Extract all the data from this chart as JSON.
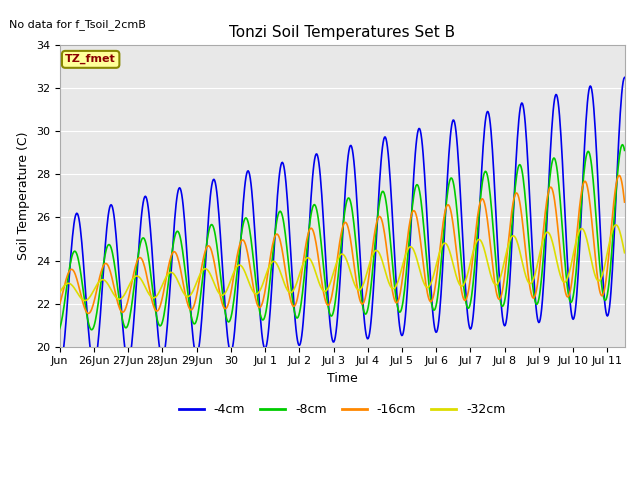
{
  "title": "Tonzi Soil Temperatures Set B",
  "xlabel": "Time",
  "ylabel": "Soil Temperature (C)",
  "no_data_text": "No data for f_Tsoil_2cmB",
  "annotation_text": "TZ_fmet",
  "ylim": [
    20,
    34
  ],
  "yticks": [
    20,
    22,
    24,
    26,
    28,
    30,
    32,
    34
  ],
  "xtick_labels": [
    "Jun",
    "26Jun",
    "27Jun",
    "28Jun",
    "29Jun",
    "30",
    "Jul 1",
    "Jul 2",
    "Jul 3",
    "Jul 4",
    "Jul 5",
    "Jul 6",
    "Jul 7",
    "Jul 8",
    "Jul 9",
    "Jul 10",
    "Jul 11"
  ],
  "colors": {
    "4cm": "#0000ee",
    "8cm": "#00cc00",
    "16cm": "#ff8800",
    "32cm": "#dddd00"
  },
  "legend_labels": [
    "-4cm",
    "-8cm",
    "-16cm",
    "-32cm"
  ],
  "background_gray": "#e8e8e8",
  "line_width": 1.2,
  "figsize": [
    6.4,
    4.8
  ],
  "dpi": 100
}
